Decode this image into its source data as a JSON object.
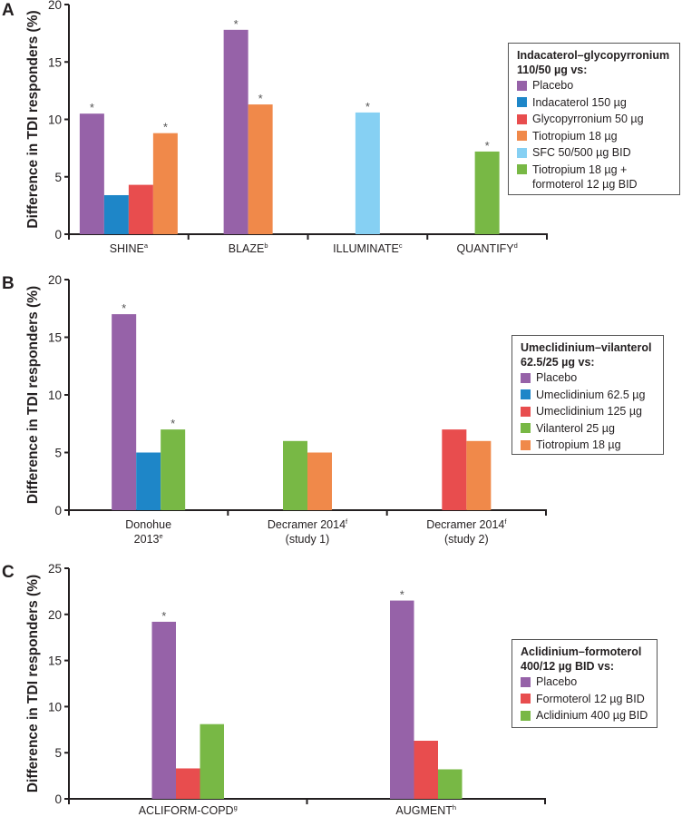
{
  "figure": {
    "ylabel": "Difference in TDI responders (%)"
  },
  "colors": {
    "purple": "#9662a8",
    "blue": "#1e86c8",
    "red": "#e84d4e",
    "orange": "#f0894a",
    "lightblue": "#86d0f3",
    "green": "#78b845"
  },
  "chart_data": [
    {
      "panel": "A",
      "type": "bar",
      "ylabel": "Difference in TDI responders (%)",
      "xlabel": "",
      "ylim": [
        0,
        20
      ],
      "yticks": [
        0,
        5,
        10,
        15,
        20
      ],
      "categories": [
        {
          "label": "SHINE",
          "sup": "a"
        },
        {
          "label": "BLAZE",
          "sup": "b"
        },
        {
          "label": "ILLUMINATE",
          "sup": "c"
        },
        {
          "label": "QUANTIFY",
          "sup": "d"
        }
      ],
      "legend": {
        "title": "Indacaterol–glycopyrronium\n110/50 µg vs:",
        "placement": "right"
      },
      "series": [
        {
          "name": "Placebo",
          "color": "#9662a8",
          "values": [
            10.5,
            17.8,
            null,
            null
          ],
          "significant": [
            true,
            true,
            false,
            false
          ]
        },
        {
          "name": "Indacaterol 150 µg",
          "color": "#1e86c8",
          "values": [
            3.4,
            null,
            null,
            null
          ],
          "significant": [
            false,
            false,
            false,
            false
          ]
        },
        {
          "name": "Glycopyrronium 50 µg",
          "color": "#e84d4e",
          "values": [
            4.3,
            null,
            null,
            null
          ],
          "significant": [
            false,
            false,
            false,
            false
          ]
        },
        {
          "name": "Tiotropium 18 µg",
          "color": "#f0894a",
          "values": [
            8.8,
            11.3,
            null,
            null
          ],
          "significant": [
            true,
            true,
            false,
            false
          ]
        },
        {
          "name": "SFC 50/500 µg BID",
          "color": "#86d0f3",
          "values": [
            null,
            null,
            10.6,
            null
          ],
          "significant": [
            false,
            false,
            true,
            false
          ]
        },
        {
          "name": "Tiotropium 18 µg +\nformoterol 12 µg BID",
          "color": "#78b845",
          "values": [
            null,
            null,
            null,
            7.2
          ],
          "significant": [
            false,
            false,
            false,
            true
          ]
        }
      ]
    },
    {
      "panel": "B",
      "type": "bar",
      "ylabel": "Difference in TDI responders (%)",
      "xlabel": "",
      "ylim": [
        0,
        20
      ],
      "yticks": [
        0,
        5,
        10,
        15,
        20
      ],
      "categories": [
        {
          "label": "Donohue",
          "label2": "2013",
          "sup": "e"
        },
        {
          "label": "Decramer 2014",
          "sup": "f",
          "label2": "(study 1)"
        },
        {
          "label": "Decramer 2014",
          "sup": "f",
          "label2": "(study 2)"
        }
      ],
      "legend": {
        "title": "Umeclidinium–vilanterol\n62.5/25 µg vs:",
        "placement": "right"
      },
      "series": [
        {
          "name": "Placebo",
          "color": "#9662a8",
          "values": [
            17,
            null,
            null
          ],
          "significant": [
            true,
            false,
            false
          ]
        },
        {
          "name": "Umeclidinium 62.5 µg",
          "color": "#1e86c8",
          "values": [
            5,
            null,
            null
          ],
          "significant": [
            false,
            false,
            false
          ]
        },
        {
          "name": "Umeclidinium 125 µg",
          "color": "#e84d4e",
          "values": [
            null,
            null,
            7
          ],
          "significant": [
            false,
            false,
            false
          ]
        },
        {
          "name": "Vilanterol 25 µg",
          "color": "#78b845",
          "values": [
            7,
            6,
            null
          ],
          "significant": [
            true,
            false,
            false
          ]
        },
        {
          "name": "Tiotropium 18 µg",
          "color": "#f0894a",
          "values": [
            null,
            5,
            6
          ],
          "significant": [
            false,
            false,
            false
          ]
        }
      ],
      "bar_order": [
        [
          "Placebo",
          "Umeclidinium 62.5 µg",
          "Vilanterol 25 µg"
        ],
        [
          "Vilanterol 25 µg",
          "Tiotropium 18 µg"
        ],
        [
          "Umeclidinium 125 µg",
          "Tiotropium 18 µg"
        ]
      ]
    },
    {
      "panel": "C",
      "type": "bar",
      "ylabel": "Difference in TDI responders (%)",
      "xlabel": "",
      "ylim": [
        0,
        25
      ],
      "yticks": [
        0,
        5,
        10,
        15,
        20,
        25
      ],
      "categories": [
        {
          "label": "ACLIFORM-COPD",
          "sup": "g"
        },
        {
          "label": "AUGMENT",
          "sup": "h"
        }
      ],
      "legend": {
        "title": "Aclidinium–formoterol\n400/12 µg BID vs:",
        "placement": "right"
      },
      "series": [
        {
          "name": "Placebo",
          "color": "#9662a8",
          "values": [
            19.2,
            21.5
          ],
          "significant": [
            true,
            true
          ]
        },
        {
          "name": "Formoterol 12 µg BID",
          "color": "#e84d4e",
          "values": [
            3.3,
            6.3
          ],
          "significant": [
            false,
            false
          ]
        },
        {
          "name": "Aclidinium 400 µg BID",
          "color": "#78b845",
          "values": [
            8.1,
            3.2
          ],
          "significant": [
            false,
            false
          ]
        }
      ]
    }
  ],
  "significance_marker": "*"
}
